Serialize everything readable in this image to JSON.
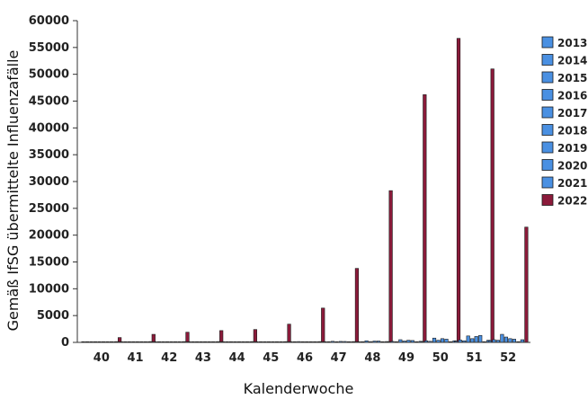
{
  "chart_data": {
    "type": "bar",
    "xlabel": "Kalenderwoche",
    "ylabel": "Gemäß IfSG übermittelte Influenzafälle",
    "ylim": [
      0,
      60000
    ],
    "yticks": [
      0,
      5000,
      10000,
      15000,
      20000,
      25000,
      30000,
      35000,
      40000,
      45000,
      50000,
      55000,
      60000
    ],
    "grid": false,
    "legend_position": "right",
    "categories": [
      "40",
      "41",
      "42",
      "43",
      "44",
      "45",
      "46",
      "47",
      "48",
      "49",
      "50",
      "51",
      "52"
    ],
    "series": [
      {
        "name": "2013",
        "color": "#4a90e2",
        "values": [
          15,
          20,
          20,
          25,
          30,
          30,
          40,
          60,
          100,
          120,
          150,
          200,
          300
        ]
      },
      {
        "name": "2014",
        "color": "#4a90e2",
        "values": [
          20,
          25,
          30,
          30,
          40,
          50,
          60,
          80,
          120,
          180,
          300,
          450,
          500
        ]
      },
      {
        "name": "2015",
        "color": "#4a90e2",
        "values": [
          20,
          25,
          25,
          30,
          35,
          40,
          50,
          70,
          100,
          130,
          200,
          300,
          400
        ]
      },
      {
        "name": "2016",
        "color": "#4a90e2",
        "values": [
          30,
          40,
          50,
          60,
          80,
          100,
          150,
          200,
          300,
          500,
          800,
          1200,
          1500
        ]
      },
      {
        "name": "2017",
        "color": "#4a90e2",
        "values": [
          25,
          30,
          35,
          40,
          50,
          60,
          80,
          100,
          150,
          250,
          400,
          700,
          1000
        ]
      },
      {
        "name": "2018",
        "color": "#4a90e2",
        "values": [
          40,
          50,
          60,
          70,
          80,
          100,
          130,
          180,
          250,
          400,
          700,
          1100,
          700
        ]
      },
      {
        "name": "2019",
        "color": "#4a90e2",
        "values": [
          30,
          40,
          50,
          60,
          80,
          100,
          120,
          170,
          250,
          350,
          600,
          1300,
          600
        ]
      },
      {
        "name": "2020",
        "color": "#4a90e2",
        "values": [
          20,
          20,
          20,
          20,
          20,
          20,
          20,
          20,
          20,
          20,
          20,
          20,
          20
        ]
      },
      {
        "name": "2021",
        "color": "#4a90e2",
        "values": [
          30,
          40,
          50,
          60,
          70,
          80,
          100,
          120,
          150,
          200,
          300,
          400,
          500
        ]
      },
      {
        "name": "2022",
        "color": "#8b1a3a",
        "values": [
          900,
          1500,
          1900,
          2200,
          2400,
          3400,
          6400,
          13800,
          28300,
          46200,
          56700,
          51000,
          21500
        ]
      }
    ]
  }
}
